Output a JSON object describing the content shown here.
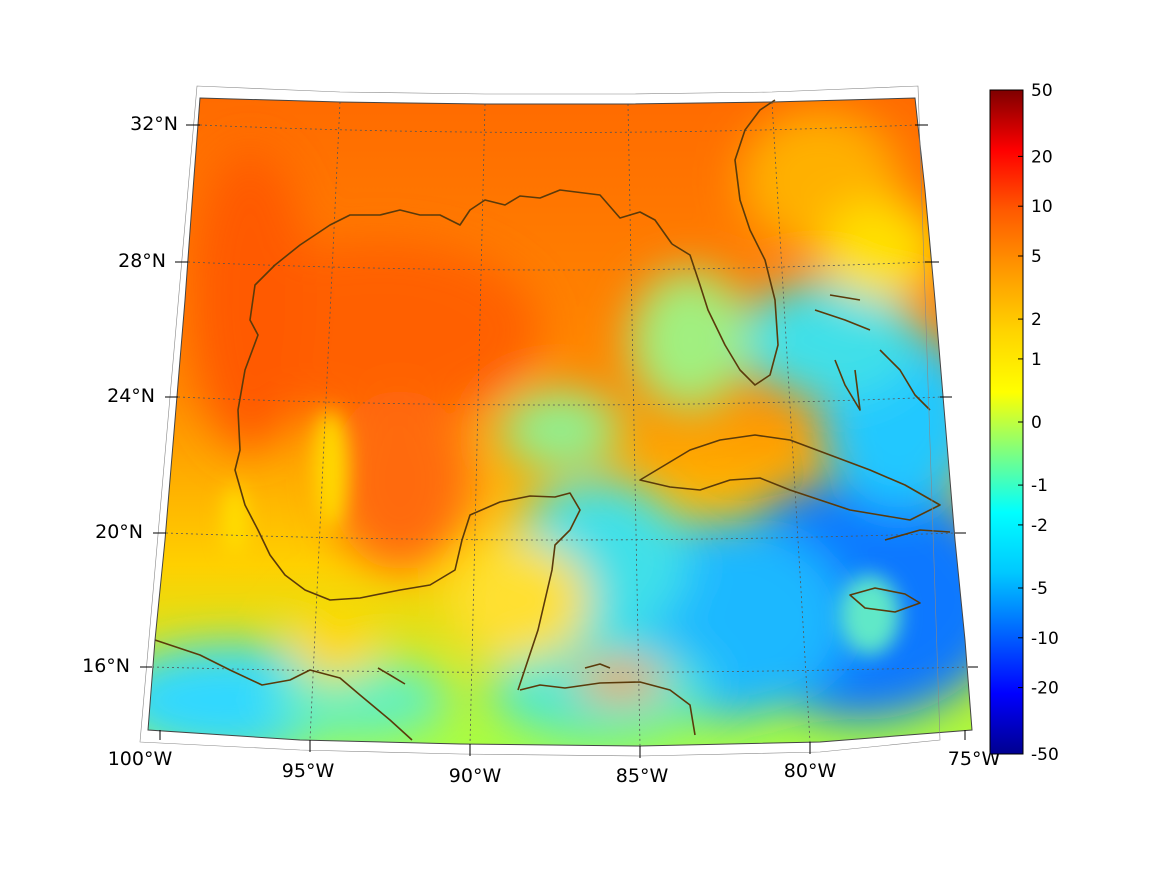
{
  "map": {
    "latitude_labels": [
      "32°N",
      "28°N",
      "24°N",
      "20°N",
      "16°N"
    ],
    "longitude_labels": [
      "100°W",
      "95°W",
      "90°W",
      "85°W",
      "80°W",
      "75°W"
    ],
    "extent": {
      "lon": [
        -100,
        -75
      ],
      "lat": [
        14,
        33
      ]
    }
  },
  "colorbar": {
    "tick_labels": [
      "50",
      "20",
      "10",
      "5",
      "2",
      "1",
      "0",
      "-1",
      "-2",
      "-5",
      "-10",
      "-20",
      "-50"
    ],
    "colors": [
      "#7f0000",
      "#ff0000",
      "#ff5a00",
      "#ff9a00",
      "#ffd400",
      "#ffff00",
      "#7fff7f",
      "#00ffff",
      "#00c8ff",
      "#0064ff",
      "#0000ff",
      "#00008f"
    ]
  },
  "colors": {
    "coastline": "#5a3a0a",
    "land_high": "#ff6a00",
    "water_mid": "#ffd000",
    "water_low": "#00a8ff"
  }
}
